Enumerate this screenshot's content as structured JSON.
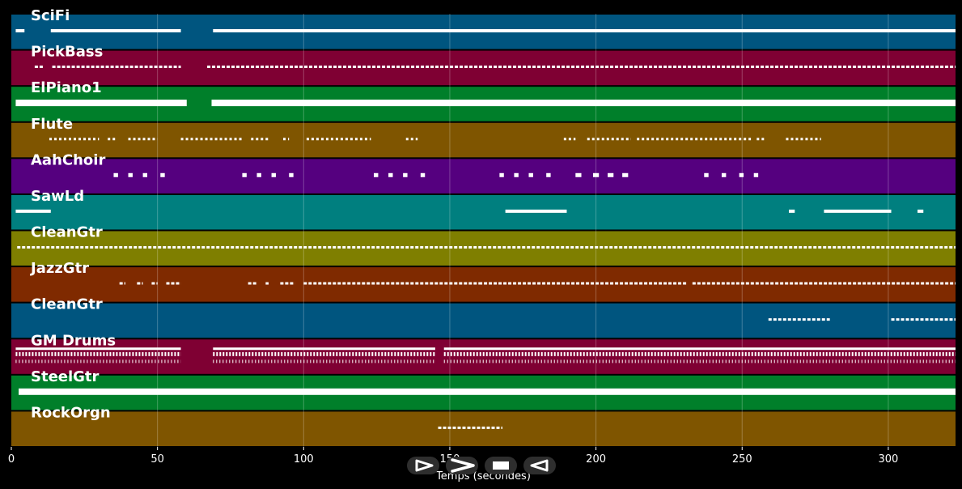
{
  "axis": {
    "xlabel": "Temps (secondes)",
    "x_min": 0,
    "x_max": 323,
    "ticks": [
      0,
      50,
      100,
      150,
      200,
      250,
      300
    ],
    "grid": true
  },
  "tracks": [
    {
      "name": "SciFi",
      "color": "#00557f",
      "style": "solid",
      "segments": [
        [
          1.5,
          4.5
        ],
        [
          13.5,
          58
        ],
        [
          69,
          323
        ]
      ]
    },
    {
      "name": "PickBass",
      "color": "#7f0033",
      "style": "dash",
      "segments": [
        [
          8,
          11
        ],
        [
          14,
          58
        ],
        [
          67,
          323
        ]
      ]
    },
    {
      "name": "ElPiano1",
      "color": "#007f2a",
      "style": "thick",
      "segments": [
        [
          1.5,
          60
        ],
        [
          68.5,
          323
        ]
      ]
    },
    {
      "name": "Flute",
      "color": "#7f5500",
      "style": "sparse",
      "segments": [
        [
          13,
          30
        ],
        [
          33,
          36
        ],
        [
          40,
          50
        ],
        [
          58,
          79
        ],
        [
          82,
          88
        ],
        [
          93,
          95
        ],
        [
          101,
          123
        ],
        [
          135,
          139
        ],
        [
          189,
          193
        ],
        [
          197,
          212
        ],
        [
          214,
          253
        ],
        [
          255,
          258
        ],
        [
          265,
          277
        ]
      ]
    },
    {
      "name": "AahChoir",
      "color": "#55007f",
      "style": "dots",
      "segments": [
        [
          35,
          36.5
        ],
        [
          40,
          41.5
        ],
        [
          45,
          46.5
        ],
        [
          51,
          52.5
        ],
        [
          79,
          80.5
        ],
        [
          84,
          85.5
        ],
        [
          89,
          90.5
        ],
        [
          95,
          96.5
        ],
        [
          124,
          125.5
        ],
        [
          129,
          130.5
        ],
        [
          134,
          135.5
        ],
        [
          140,
          141.5
        ],
        [
          167,
          168.5
        ],
        [
          172,
          173.5
        ],
        [
          177,
          178.5
        ],
        [
          183,
          184.5
        ],
        [
          193,
          195
        ],
        [
          199,
          201
        ],
        [
          204,
          206
        ],
        [
          209,
          211
        ],
        [
          237,
          238.5
        ],
        [
          243,
          244.5
        ],
        [
          249,
          250.5
        ],
        [
          254,
          255.5
        ]
      ]
    },
    {
      "name": "SawLd",
      "color": "#007f7f",
      "style": "solid",
      "segments": [
        [
          1.5,
          13.5
        ],
        [
          169,
          190
        ],
        [
          266,
          268
        ],
        [
          278,
          301
        ],
        [
          310,
          312
        ]
      ]
    },
    {
      "name": "CleanGtr",
      "color": "#7f7f00",
      "style": "dash",
      "segments": [
        [
          2,
          323
        ]
      ]
    },
    {
      "name": "JazzGtr",
      "color": "#7f2a00",
      "style": "dash",
      "segments": [
        [
          37,
          39
        ],
        [
          43,
          45
        ],
        [
          48,
          50
        ],
        [
          53,
          58
        ],
        [
          81,
          84
        ],
        [
          87,
          88
        ],
        [
          92,
          97
        ],
        [
          100,
          160
        ],
        [
          160,
          231
        ],
        [
          233,
          258
        ],
        [
          258,
          323
        ]
      ]
    },
    {
      "name": "CleanGtr",
      "color": "#00557f",
      "style": "dash",
      "segments": [
        [
          259,
          280
        ],
        [
          301,
          323
        ]
      ]
    },
    {
      "name": "GM Drums",
      "color": "#7f0033",
      "style": "drums",
      "segments": [
        [
          1.5,
          58
        ],
        [
          69,
          145
        ],
        [
          148,
          323
        ]
      ]
    },
    {
      "name": "SteelGtr",
      "color": "#007f2a",
      "style": "thick",
      "segments": [
        [
          2.5,
          323
        ]
      ]
    },
    {
      "name": "RockOrgn",
      "color": "#7f5500",
      "style": "dash",
      "segments": [
        [
          146,
          168
        ]
      ]
    }
  ],
  "controls": [
    {
      "name": "play",
      "icon": "play-outline-icon"
    },
    {
      "name": "fast-forward",
      "icon": "chevron-right-icon"
    },
    {
      "name": "stop",
      "icon": "stop-icon"
    },
    {
      "name": "rewind",
      "icon": "rewind-icon"
    }
  ]
}
